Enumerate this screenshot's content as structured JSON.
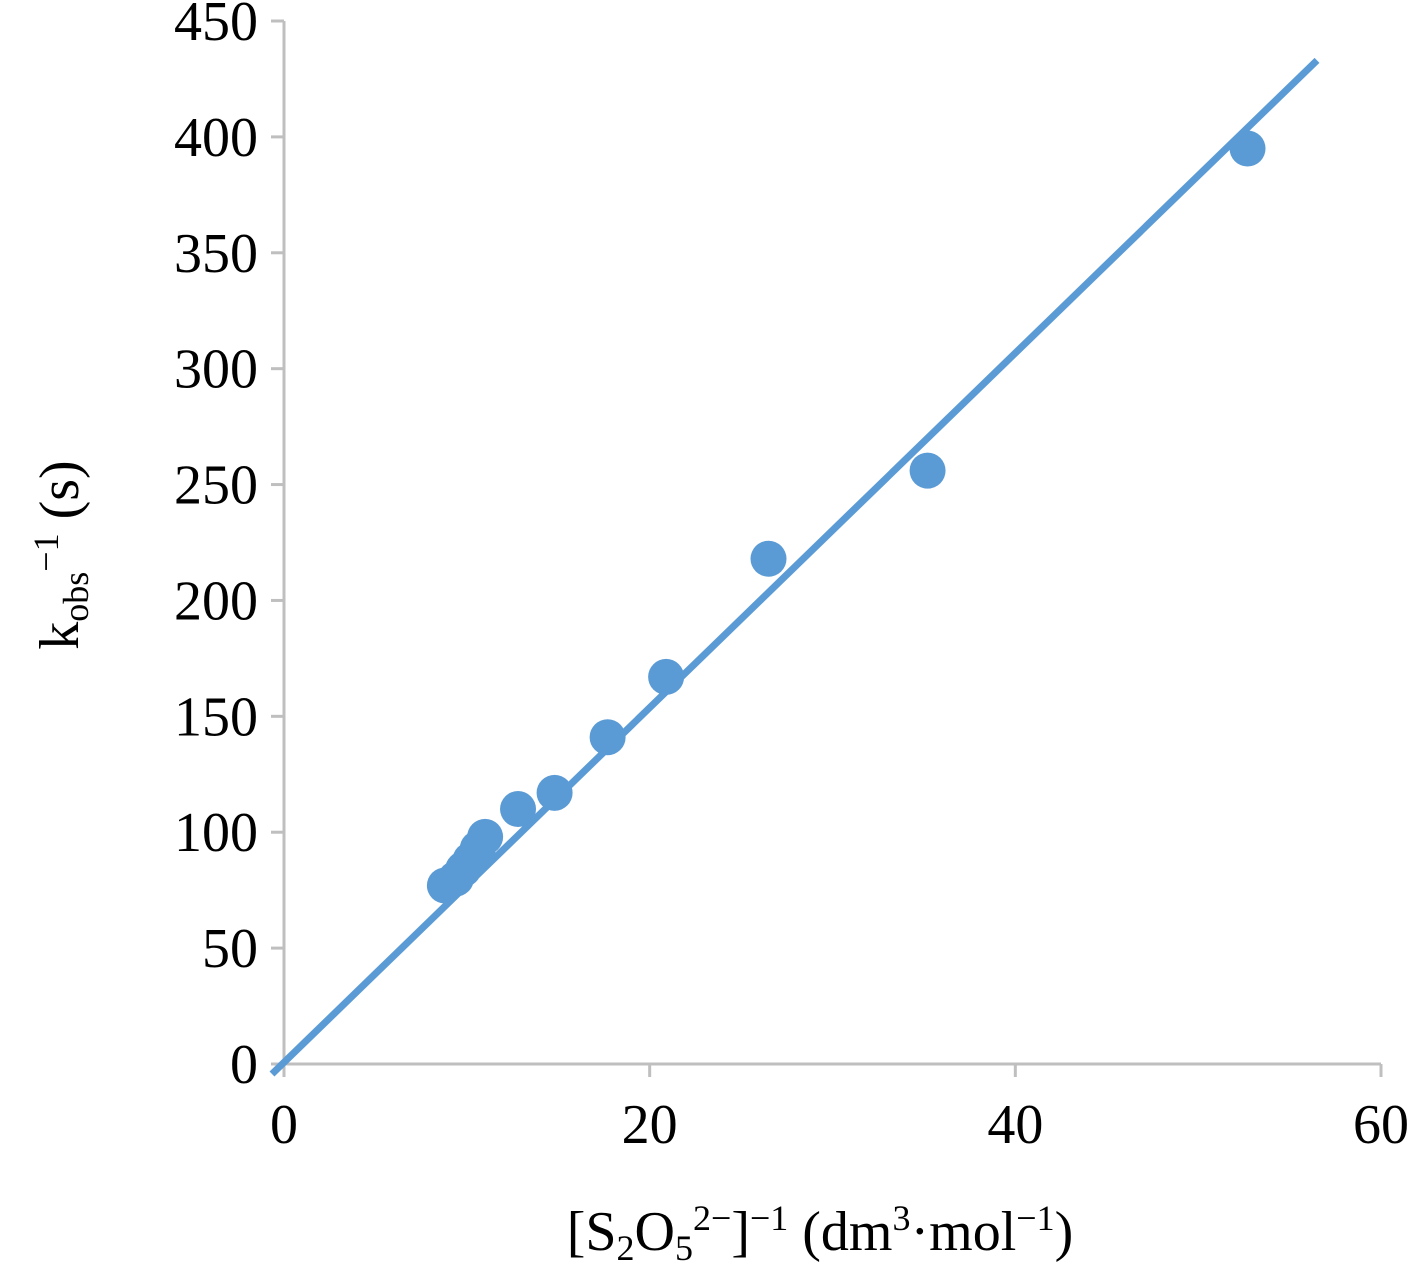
{
  "chart_data": {
    "type": "scatter",
    "title": "",
    "xlabel": {
      "parts": [
        {
          "text": "[S",
          "style": "normal"
        },
        {
          "text": "2",
          "style": "sub"
        },
        {
          "text": "O",
          "style": "normal"
        },
        {
          "text": "5",
          "style": "sub"
        },
        {
          "text": "2−",
          "style": "sup"
        },
        {
          "text": "]",
          "style": "normal"
        },
        {
          "text": "−1",
          "style": "sup"
        },
        {
          "text": " (dm",
          "style": "normal"
        },
        {
          "text": "3",
          "style": "sup"
        },
        {
          "text": "·mol",
          "style": "normal"
        },
        {
          "text": "−1",
          "style": "sup"
        },
        {
          "text": ")",
          "style": "normal"
        }
      ]
    },
    "ylabel": {
      "parts": [
        {
          "text": "k",
          "style": "normal"
        },
        {
          "text": "obs",
          "style": "sub"
        },
        {
          "text": "−1",
          "style": "sup"
        },
        {
          "text": " (s)",
          "style": "normal"
        }
      ]
    },
    "xlim": [
      0,
      60
    ],
    "ylim": [
      0,
      450
    ],
    "xticks": [
      0,
      20,
      40,
      60
    ],
    "yticks": [
      0,
      50,
      100,
      150,
      200,
      250,
      300,
      350,
      400,
      450
    ],
    "grid": false,
    "legend": "none",
    "marker_color": "#5B9BD5",
    "line_color": "#5B9BD5",
    "axis_color": "#BFBFBF",
    "series": [
      {
        "x": [
          8.8,
          9.4,
          9.8,
          10.2,
          10.6,
          11.0,
          12.8,
          14.8,
          17.7,
          20.9,
          26.5,
          35.2,
          52.7
        ],
        "y": [
          77,
          80,
          84,
          88,
          93,
          98,
          110,
          117,
          141,
          167,
          218,
          256,
          395
        ]
      }
    ],
    "trendline": {
      "type": "linear",
      "x": [
        0,
        56.5
      ],
      "y": [
        0,
        433
      ]
    }
  }
}
